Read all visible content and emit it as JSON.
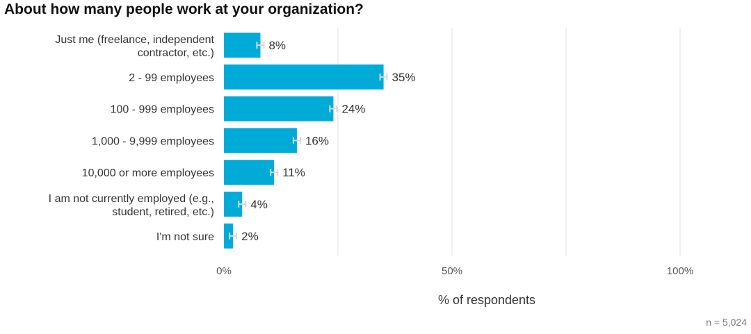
{
  "chart_data": {
    "type": "bar",
    "orientation": "horizontal",
    "title": "About how many people work at your organization?",
    "categories": [
      [
        "Just me (freelance, independent",
        "contractor, etc.)"
      ],
      [
        "2 - 99 employees"
      ],
      [
        "100 - 999 employees"
      ],
      [
        "1,000 - 9,999 employees"
      ],
      [
        "10,000 or more employees"
      ],
      [
        "I am not currently employed (e.g.,",
        "student, retired, etc.)"
      ],
      [
        "I'm not sure"
      ]
    ],
    "values": [
      8,
      35,
      24,
      16,
      11,
      4,
      2
    ],
    "value_labels": [
      "8%",
      "35%",
      "24%",
      "16%",
      "11%",
      "4%",
      "2%"
    ],
    "error_bars": true,
    "xlim": [
      0,
      100
    ],
    "xticks": [
      0,
      50,
      100
    ],
    "xtick_labels": [
      "0%",
      "50%",
      "100%"
    ],
    "xlabel": "% of respondents",
    "grid": true,
    "colors": {
      "bar": "#00acd7",
      "grid": "#e4e4e4",
      "error_bar": "#d8d8d8"
    }
  },
  "note": "n =  5,024"
}
